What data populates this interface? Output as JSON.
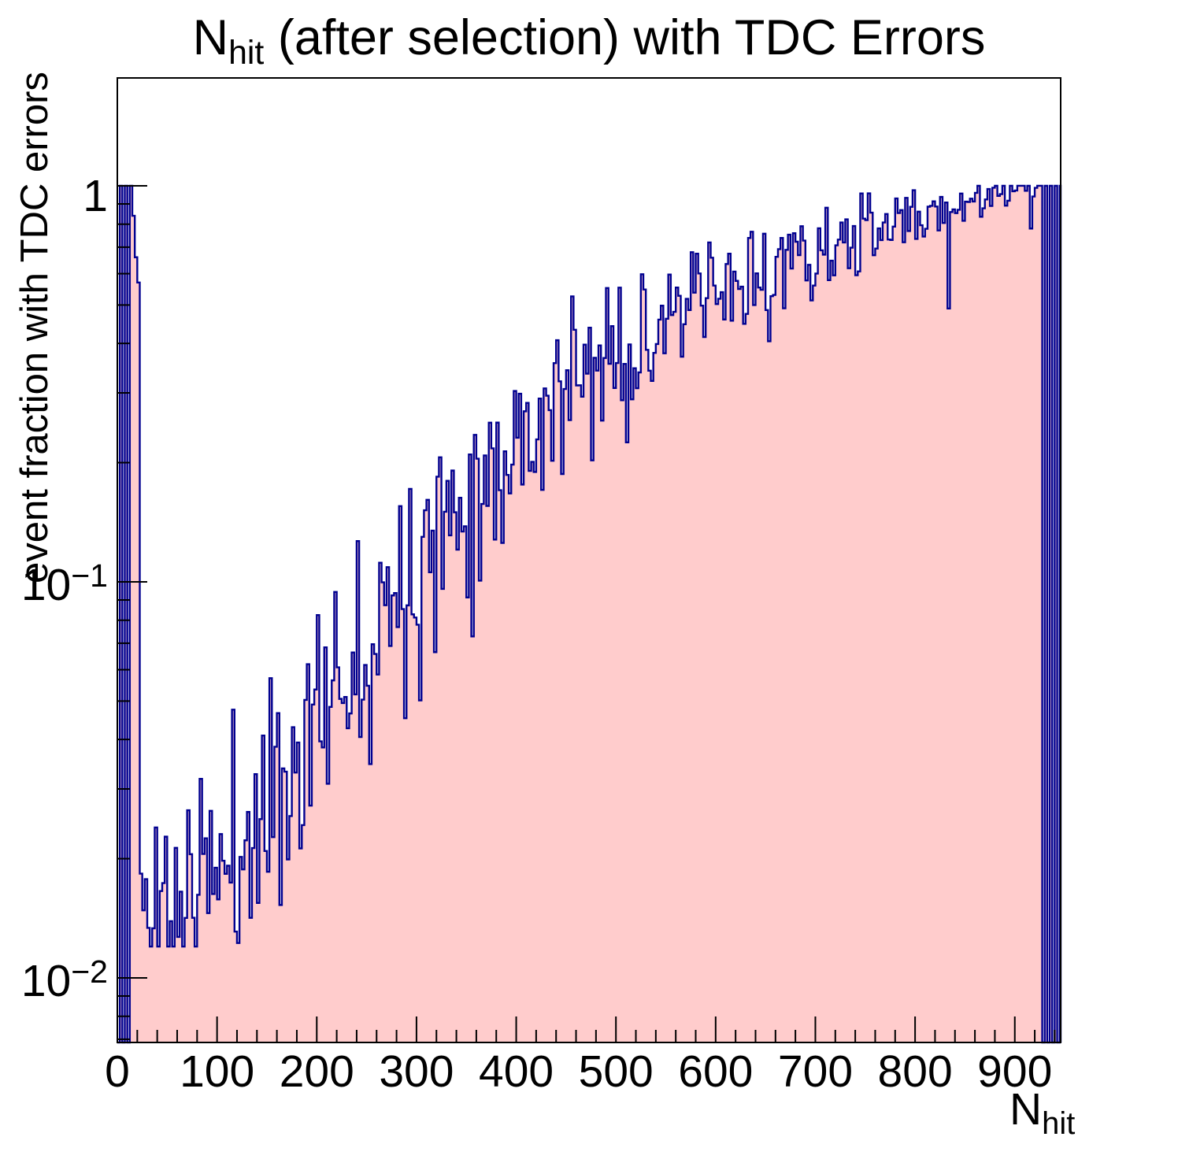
{
  "title": {
    "prefix": "N",
    "subscript": "hit",
    "rest": " (after selection) with TDC Errors"
  },
  "axes": {
    "y_title": "event fraction with TDC errors",
    "x_title_prefix": "N",
    "x_title_subscript": "hit",
    "y_tick_labels": [
      {
        "base": "1",
        "exp": ""
      },
      {
        "base": "10",
        "exp": "−1"
      },
      {
        "base": "10",
        "exp": "−2"
      }
    ],
    "x_tick_labels": [
      "0",
      "100",
      "200",
      "300",
      "400",
      "500",
      "600",
      "700",
      "800",
      "900"
    ]
  },
  "chart_data": {
    "type": "bar",
    "subtype": "step-histogram-log-y",
    "title": "N_hit (after selection) with TDC Errors",
    "xlabel": "N_hit",
    "ylabel": "event fraction with TDC errors",
    "x_range": [
      0,
      946
    ],
    "y_range": [
      0.00687,
      1.872
    ],
    "y_scale": "log",
    "grid": false,
    "legend": "none",
    "bin_width": 2.5,
    "x_major_ticks": [
      0,
      100,
      200,
      300,
      400,
      500,
      600,
      700,
      800,
      900
    ],
    "x_minor_step": 20,
    "y_major_ticks": [
      1,
      0.1,
      0.01
    ],
    "start_bins": [
      [
        0,
        0
      ],
      [
        2.5,
        1.0
      ],
      [
        5,
        0
      ],
      [
        7.5,
        1.0
      ],
      [
        10,
        0
      ],
      [
        12.5,
        1.0
      ],
      [
        15,
        0.84
      ],
      [
        17.5,
        0.66
      ],
      [
        20,
        0.57
      ]
    ],
    "trend_region": [
      22.5,
      925
    ],
    "trend_points": [
      [
        22.5,
        0.0165
      ],
      [
        27.5,
        0.0143
      ],
      [
        32.5,
        0.0138
      ],
      [
        40,
        0.0148
      ],
      [
        50,
        0.0155
      ],
      [
        60,
        0.016
      ],
      [
        70,
        0.0165
      ],
      [
        80,
        0.017
      ],
      [
        90,
        0.018
      ],
      [
        100,
        0.019
      ],
      [
        110,
        0.0195
      ],
      [
        120,
        0.021
      ],
      [
        130,
        0.023
      ],
      [
        140,
        0.025
      ],
      [
        150,
        0.027
      ],
      [
        160,
        0.0295
      ],
      [
        170,
        0.032
      ],
      [
        180,
        0.036
      ],
      [
        190,
        0.04
      ],
      [
        200,
        0.045
      ],
      [
        215,
        0.053
      ],
      [
        230,
        0.062
      ],
      [
        250,
        0.075
      ],
      [
        270,
        0.09
      ],
      [
        300,
        0.115
      ],
      [
        325,
        0.14
      ],
      [
        350,
        0.165
      ],
      [
        375,
        0.195
      ],
      [
        400,
        0.225
      ],
      [
        425,
        0.26
      ],
      [
        450,
        0.3
      ],
      [
        475,
        0.335
      ],
      [
        500,
        0.37
      ],
      [
        525,
        0.405
      ],
      [
        550,
        0.44
      ],
      [
        575,
        0.48
      ],
      [
        600,
        0.52
      ],
      [
        625,
        0.56
      ],
      [
        650,
        0.6
      ],
      [
        675,
        0.635
      ],
      [
        700,
        0.67
      ],
      [
        725,
        0.71
      ],
      [
        750,
        0.75
      ],
      [
        775,
        0.79
      ],
      [
        800,
        0.83
      ],
      [
        825,
        0.87
      ],
      [
        850,
        0.9
      ],
      [
        875,
        0.94
      ],
      [
        900,
        0.97
      ],
      [
        912,
        0.985
      ],
      [
        925,
        1.0
      ]
    ],
    "special_bins": [
      [
        832.5,
        0.49
      ],
      [
        915,
        0.78
      ]
    ],
    "end_bins": [
      [
        925,
        1.0
      ],
      [
        927.5,
        0
      ],
      [
        930,
        1.0
      ],
      [
        932.5,
        0
      ],
      [
        935,
        1.0
      ],
      [
        937.5,
        0
      ],
      [
        940,
        1.0
      ],
      [
        942.5,
        0
      ],
      [
        945,
        1.0
      ]
    ],
    "noise": {
      "seed": 11,
      "base": 0.015,
      "slope": 0.135
    },
    "colors": {
      "fill": "#ffcccc",
      "line": "#000090",
      "frame": "#000000",
      "text": "#000000",
      "background": "#ffffff"
    }
  }
}
